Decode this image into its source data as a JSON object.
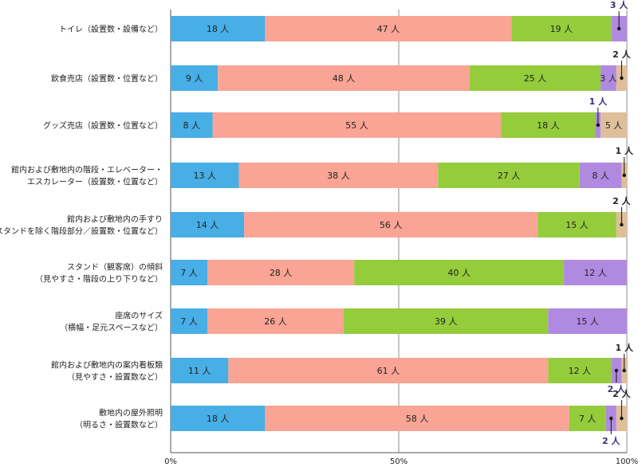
{
  "chart_data": {
    "type": "bar",
    "orientation": "horizontal",
    "stacked": "percent",
    "unit": "人",
    "categories": [
      [
        "トイレ（設置数・設備など）"
      ],
      [
        "飲食売店（設置数・位置など）"
      ],
      [
        "グッズ売店（設置数・位置など）"
      ],
      [
        "館内および敷地内の階段・エレベーター・",
        "エスカレーター（設置数・位置など）"
      ],
      [
        "館内および敷地内の手すり",
        "（スタンドを除く階段部分／設置数・位置など）"
      ],
      [
        "スタンド（観客席）の傾斜",
        "（見やすさ・階段の上り下りなど）"
      ],
      [
        "座席のサイズ",
        "（横幅・足元スペースなど）"
      ],
      [
        "館内および敷地内の案内看板類",
        "（見やすさ・設置数など）"
      ],
      [
        "敷地内の屋外照明",
        "（明るさ・設置数など）"
      ]
    ],
    "series": [
      {
        "color": "#47aee6",
        "values": [
          18,
          9,
          8,
          13,
          14,
          7,
          7,
          11,
          18
        ]
      },
      {
        "color": "#f9a494",
        "values": [
          47,
          48,
          55,
          38,
          56,
          28,
          26,
          61,
          58
        ]
      },
      {
        "color": "#95cc3c",
        "values": [
          19,
          25,
          18,
          27,
          15,
          40,
          39,
          12,
          7
        ]
      },
      {
        "color": "#b08ae0",
        "values": [
          3,
          3,
          1,
          8,
          0,
          12,
          15,
          2,
          2
        ]
      },
      {
        "color": "#dfbf9a",
        "values": [
          0,
          2,
          5,
          1,
          2,
          0,
          0,
          1,
          2
        ]
      }
    ],
    "xticks": [
      "0%",
      "50%",
      "100%"
    ],
    "xlim": [
      0,
      100
    ],
    "grid": "vertical at 50% and 100%",
    "legend": "none"
  }
}
